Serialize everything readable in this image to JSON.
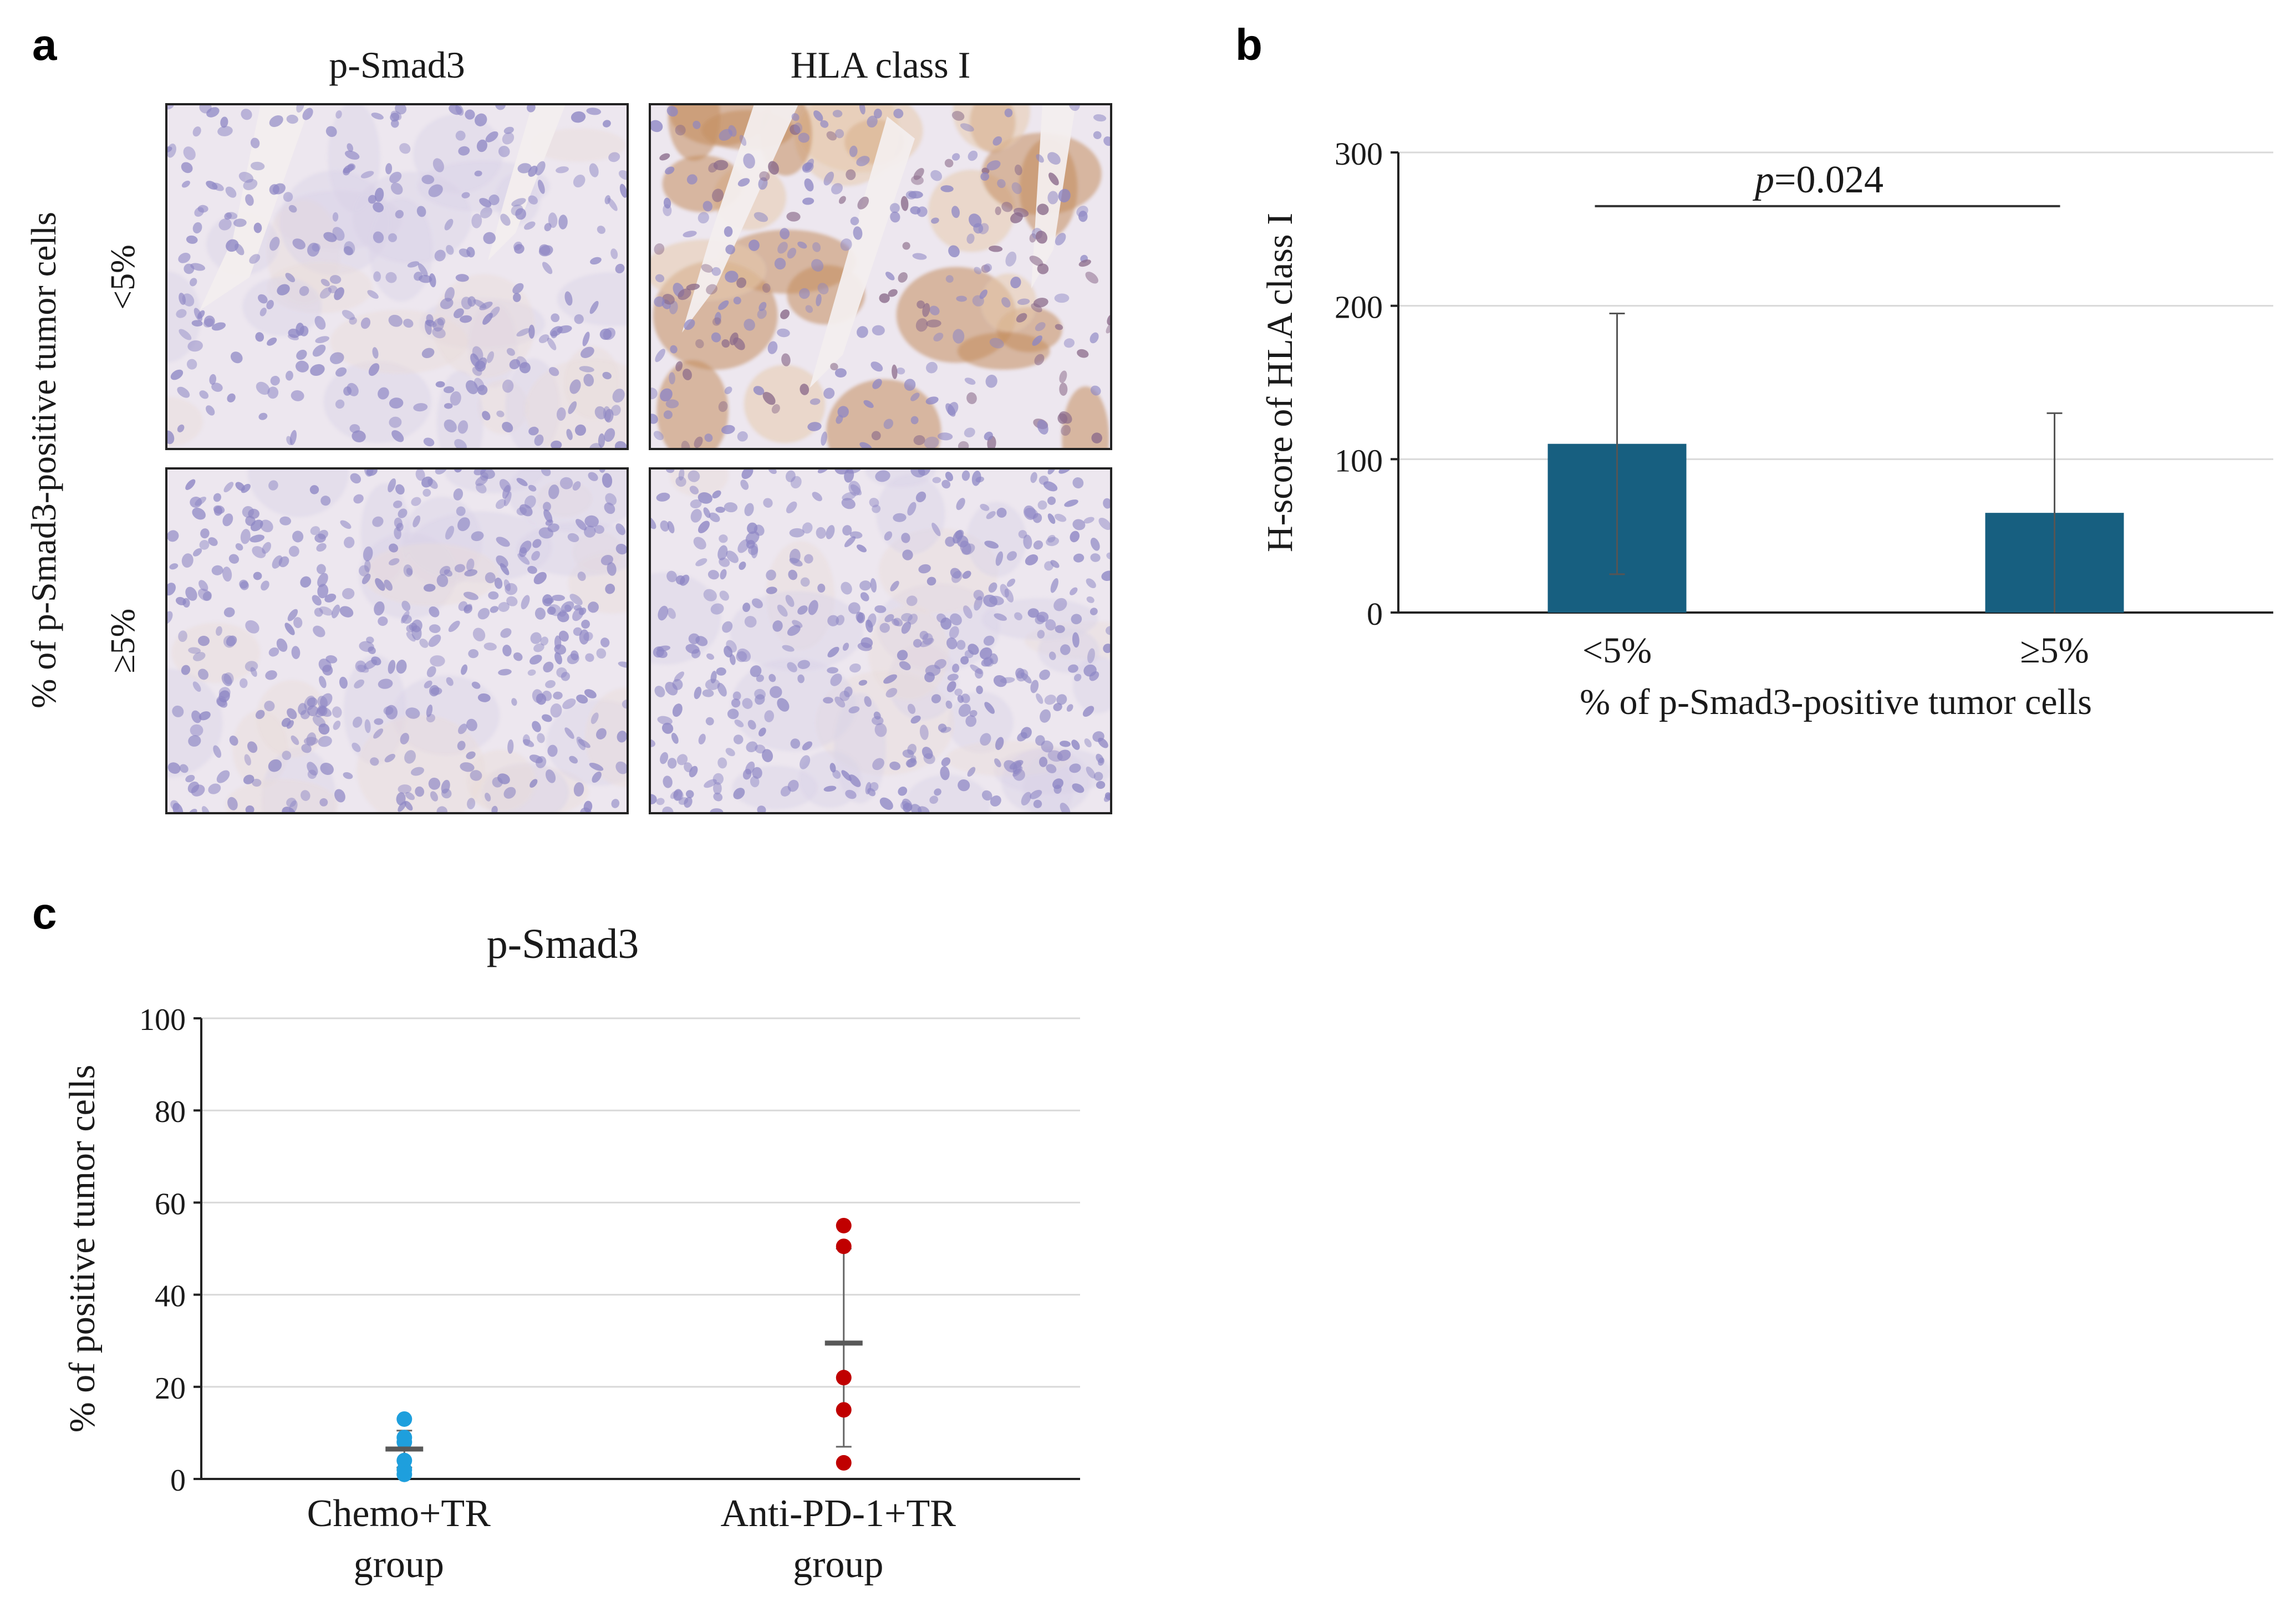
{
  "panel_a": {
    "label": "a",
    "col_headers": [
      "p-Smad3",
      "HLA class I"
    ],
    "row_labels": [
      "<5%",
      "≥5%"
    ],
    "side_label": "% of p-Smad3-positive tumor cells",
    "colors": {
      "hematoxylin": "#8d86c4",
      "dab": "#c0844e",
      "background": "#ede7ef"
    }
  },
  "panel_b": {
    "label": "b"
  },
  "panel_c": {
    "label": "c"
  },
  "chart_data": [
    {
      "type": "bar",
      "title": "",
      "categories": [
        "<5%",
        "≥5%"
      ],
      "values": [
        110,
        65
      ],
      "error_bars": [
        {
          "low": 25,
          "high": 195
        },
        {
          "low": 0,
          "high": 130
        }
      ],
      "xlabel": "% of p-Smad3-positive tumor cells",
      "ylabel": "H-score of HLA class I",
      "ylim": [
        0,
        300
      ],
      "yticks": [
        0,
        100,
        200,
        300
      ],
      "grid": true,
      "bar_color": "#175f80",
      "annotation": {
        "prefix": "p",
        "text": "=0.024",
        "between": [
          "<5%",
          "≥5%"
        ]
      }
    },
    {
      "type": "scatter",
      "title": "p-Smad3",
      "categories": [
        "Chemo+TR\ngroup",
        "Anti-PD-1+TR\ngroup"
      ],
      "category_lines": [
        [
          "Chemo+TR",
          "group"
        ],
        [
          "Anti-PD-1+TR",
          "group"
        ]
      ],
      "series": [
        {
          "category": "Chemo+TR group",
          "color": "#1e9fdd",
          "values": [
            13,
            9,
            8,
            4,
            2,
            1
          ],
          "mean": 6.5,
          "sd": [
            2.5,
            10.5
          ]
        },
        {
          "category": "Anti-PD-1+TR group",
          "color": "#c00000",
          "values": [
            55,
            50.5,
            22,
            15,
            3.5
          ],
          "mean": 29.5,
          "sd": [
            7,
            50
          ]
        }
      ],
      "ylabel": "% of positive tumor cells",
      "ylim": [
        0,
        100
      ],
      "yticks": [
        0,
        20,
        40,
        60,
        80,
        100
      ],
      "grid": true,
      "mean_color": "#595959"
    }
  ]
}
